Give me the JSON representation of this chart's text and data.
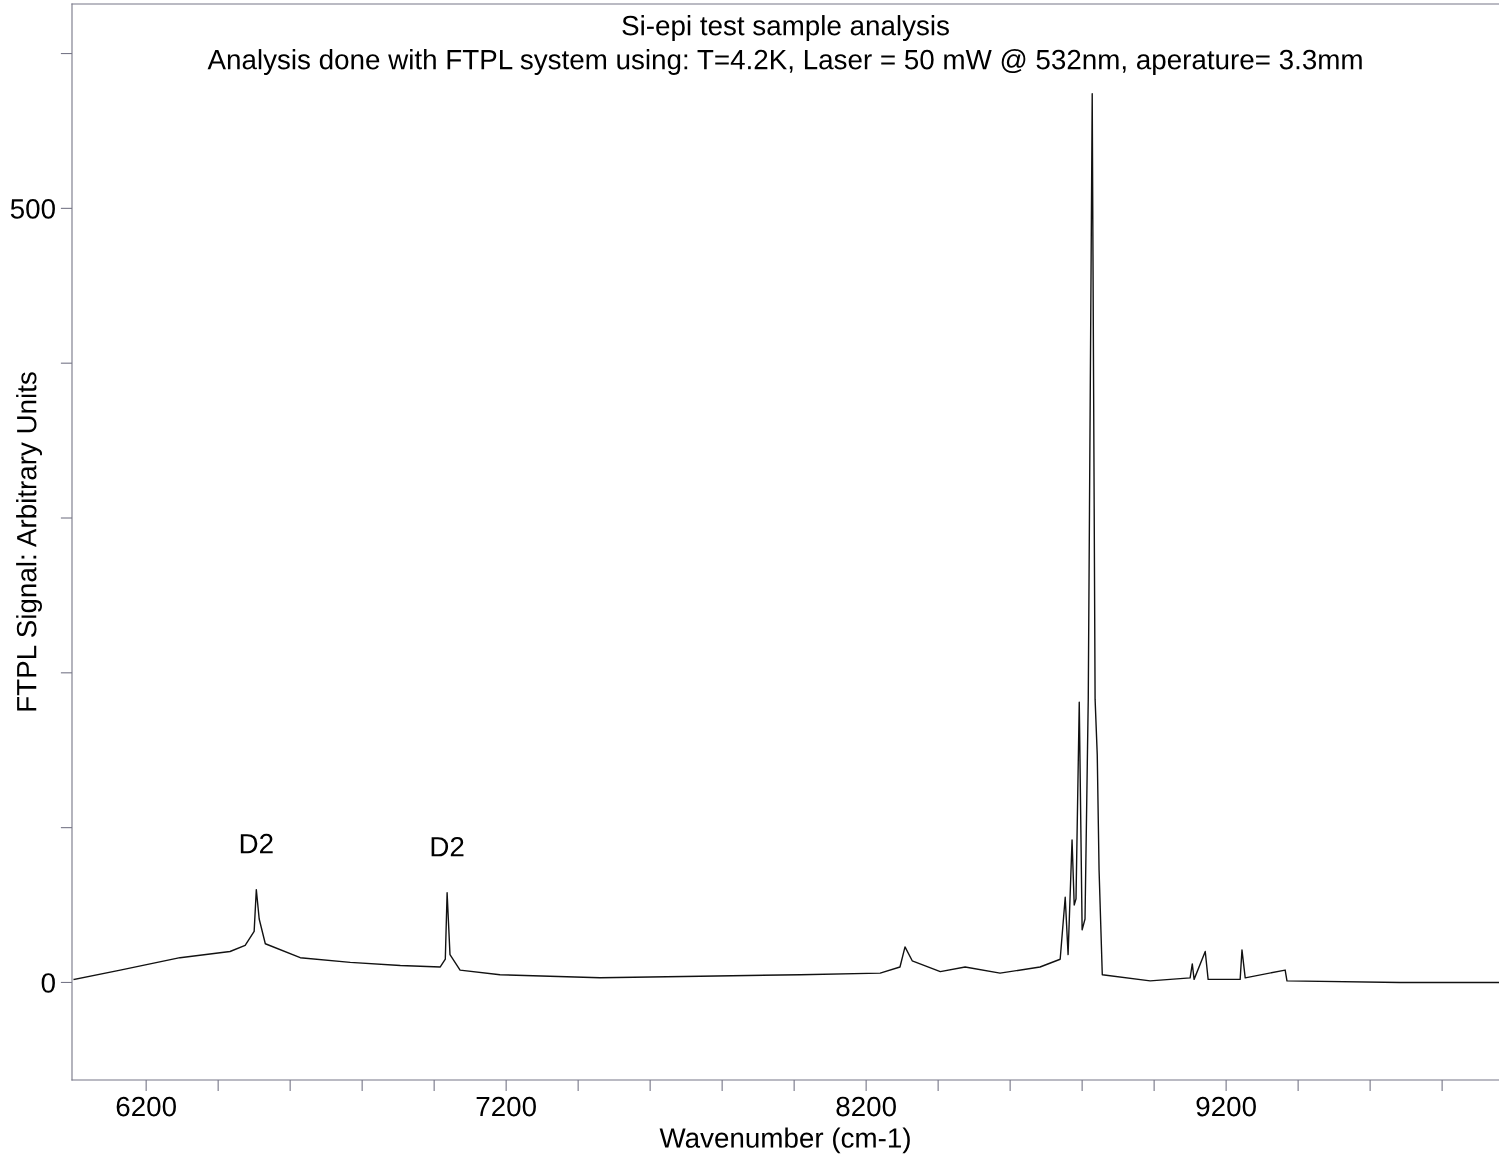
{
  "chart_data": {
    "type": "line",
    "title": "Si-epi test sample analysis",
    "subtitle": "Analysis done with FTPL system using: T=4.2K, Laser = 50 mW @ 532nm, aperature= 3.3mm",
    "xlabel": "Wavenumber (cm-1)",
    "ylabel": "FTPL Signal: Arbitrary Units",
    "x": [
      6000,
      6128,
      6294,
      6433,
      6475,
      6500,
      6506,
      6514,
      6531,
      6628,
      6767,
      6906,
      7017,
      7031,
      7036,
      7044,
      7072,
      7183,
      7461,
      7739,
      8017,
      8239,
      8294,
      8308,
      8328,
      8406,
      8475,
      8572,
      8683,
      8739,
      8753,
      8761,
      8772,
      8778,
      8783,
      8792,
      8800,
      8808,
      8817,
      8828,
      8836,
      8842,
      8847,
      8856,
      8989,
      9100,
      9106,
      9111,
      9142,
      9150,
      9239,
      9244,
      9253,
      9364,
      9369,
      9683,
      9958
    ],
    "series": [
      {
        "color": "#111111",
        "values": [
          2,
          8,
          16,
          20,
          24,
          33,
          60,
          41,
          25,
          16,
          13,
          11,
          10,
          15,
          58,
          18,
          8,
          5,
          3,
          4,
          5,
          6,
          10,
          23,
          14,
          7,
          10,
          6,
          10,
          15,
          55,
          18,
          92,
          50,
          54,
          181,
          34,
          41,
          183,
          574,
          183,
          147,
          73,
          5,
          1,
          3,
          12,
          2,
          20,
          2,
          2,
          21,
          3,
          8,
          1,
          0,
          0
        ]
      }
    ],
    "annotations": [
      {
        "text": "D2",
        "x": 6506,
        "y": 60
      },
      {
        "text": "D2",
        "x": 7036,
        "y": 58
      }
    ],
    "xlim": [
      5994,
      9958
    ],
    "ylim": [
      -63,
      632
    ],
    "xticks": [
      6200,
      {
        "value": 6400,
        "label": null
      },
      {
        "value": 6600,
        "label": null
      },
      {
        "value": 6800,
        "label": null
      },
      {
        "value": 7000,
        "label": null
      },
      7200,
      {
        "value": 7400,
        "label": null
      },
      {
        "value": 7600,
        "label": null
      },
      {
        "value": 7800,
        "label": null
      },
      {
        "value": 8000,
        "label": null
      },
      8200,
      {
        "value": 8400,
        "label": null
      },
      {
        "value": 8600,
        "label": null
      },
      {
        "value": 8800,
        "label": null
      },
      {
        "value": 9000,
        "label": null
      },
      9200,
      {
        "value": 9400,
        "label": null
      },
      {
        "value": 9600,
        "label": null
      },
      {
        "value": 9800,
        "label": null
      }
    ],
    "yticks": [
      0,
      {
        "value": 100,
        "label": null
      },
      {
        "value": 200,
        "label": null
      },
      {
        "value": 300,
        "label": null
      },
      {
        "value": 400,
        "label": null
      },
      500,
      {
        "value": 600,
        "label": null
      }
    ],
    "grid": false,
    "legend": false,
    "marker": "none",
    "line_style": "solid"
  }
}
